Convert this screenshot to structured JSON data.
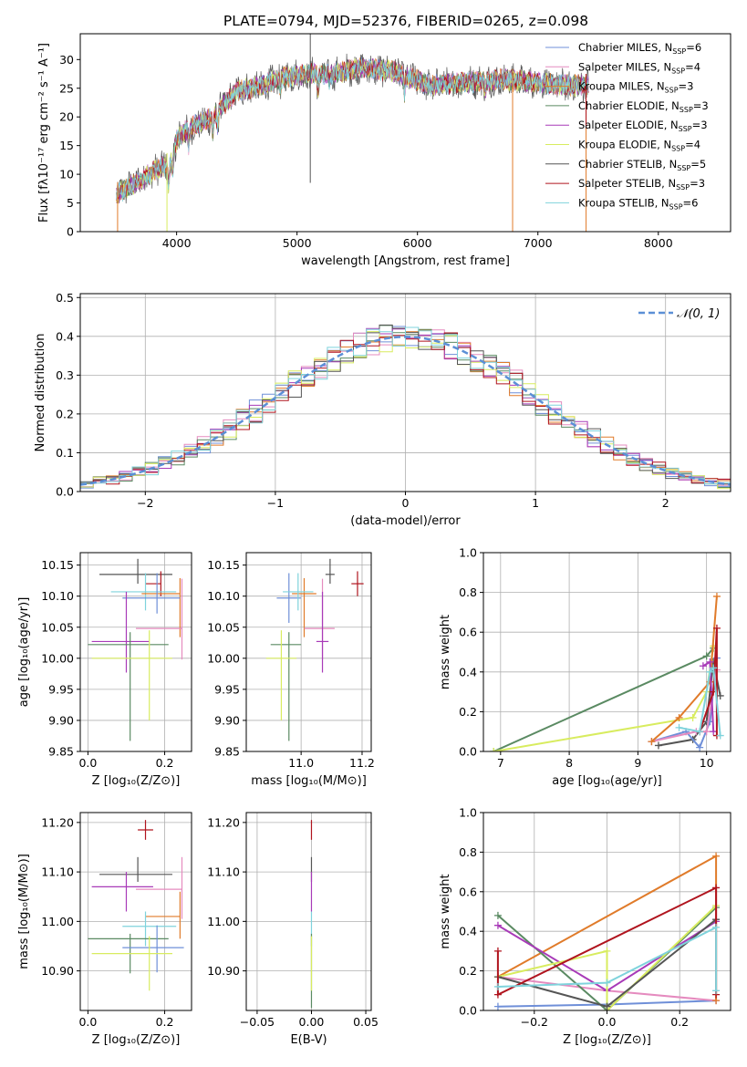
{
  "figure": {
    "title": "PLATE=0794, MJD=52376, FIBERID=0265, z=0.098"
  },
  "colors": {
    "Chabrier MILES": "#6f8fd8",
    "Salpeter MILES": "#e58bbf",
    "Kroupa MILES": "#e07b2a",
    "Chabrier ELODIE": "#5a8a62",
    "Salpeter ELODIE": "#a83ab8",
    "Kroupa ELODIE": "#d8ec5f",
    "Chabrier STELIB": "#555555",
    "Salpeter STELIB": "#b0141e",
    "Kroupa STELIB": "#7fd3dc"
  },
  "chart_data": [
    {
      "id": "spectrum",
      "type": "line",
      "xlabel": "wavelength [Angstrom, rest frame]",
      "ylabel": "Flux [fλ10⁻¹⁷ erg cm⁻² s⁻¹ A⁻¹]",
      "xlim": [
        3200,
        8600
      ],
      "ylim": [
        0,
        34.5
      ],
      "xticks": [
        4000,
        5000,
        6000,
        7000,
        8000
      ],
      "yticks": [
        0,
        5,
        10,
        15,
        20,
        25,
        30
      ],
      "grid": false,
      "legend_position": "upper right",
      "legend": [
        {
          "label": "Chabrier MILES, N",
          "sub": "SSP",
          "suffix": "=6"
        },
        {
          "label": "Salpeter MILES, N",
          "sub": "SSP",
          "suffix": "=4"
        },
        {
          "label": "Kroupa MILES, N",
          "sub": "SSP",
          "suffix": "=3"
        },
        {
          "label": "Chabrier ELODIE, N",
          "sub": "SSP",
          "suffix": "=3"
        },
        {
          "label": "Salpeter ELODIE, N",
          "sub": "SSP",
          "suffix": "=3"
        },
        {
          "label": "Kroupa ELODIE, N",
          "sub": "SSP",
          "suffix": "=4"
        },
        {
          "label": "Chabrier STELIB, N",
          "sub": "SSP",
          "suffix": "=5"
        },
        {
          "label": "Salpeter STELIB, N",
          "sub": "SSP",
          "suffix": "=3"
        },
        {
          "label": "Kroupa STELIB, N",
          "sub": "SSP",
          "suffix": "=6"
        }
      ],
      "continuum": {
        "x": [
          3500,
          3700,
          3850,
          3950,
          4000,
          4100,
          4300,
          4500,
          4700,
          4900,
          5100,
          5300,
          5500,
          5800,
          6100,
          6400,
          6700,
          7000,
          7200,
          7400
        ],
        "y": [
          6.5,
          9,
          11,
          12,
          16,
          18,
          20,
          24.5,
          25.5,
          27,
          27.5,
          27.5,
          28.5,
          28,
          25.5,
          26,
          26.5,
          26,
          25.5,
          25.5
        ]
      },
      "spikes": [
        {
          "x": 5110,
          "y0": 8.5,
          "series": "Chabrier STELIB"
        },
        {
          "x": 3510,
          "y0": 0,
          "series": "Kroupa MILES"
        },
        {
          "x": 3920,
          "y0": 0,
          "series": "Kroupa ELODIE"
        },
        {
          "x": 6790,
          "y0": 0,
          "series": "Kroupa MILES"
        },
        {
          "x": 7400,
          "y0": 0,
          "series": "Kroupa MILES"
        },
        {
          "x": 7400,
          "y0": 18,
          "series": "Salpeter STELIB"
        }
      ]
    },
    {
      "id": "residuals",
      "type": "line",
      "xlabel": "(data-model)/error",
      "ylabel": "Normed distribution",
      "xlim": [
        -2.5,
        2.5
      ],
      "ylim": [
        0,
        0.51
      ],
      "xticks": [
        -2,
        -1,
        0,
        1,
        2
      ],
      "yticks": [
        0.0,
        0.1,
        0.2,
        0.3,
        0.4,
        0.5
      ],
      "grid": true,
      "legend_position": "upper right",
      "legend": [
        {
          "label": "𝒩(0, 1)",
          "style": "dashed"
        }
      ],
      "normal_curve": {
        "mean": 0,
        "sigma": 1
      }
    },
    {
      "id": "age-vs-Z",
      "type": "scatter",
      "xlabel": "Z [log₁₀(Z/Z⊙)]",
      "ylabel": "age  [log₁₀(age/yr)]",
      "xlim": [
        -0.02,
        0.27
      ],
      "ylim": [
        9.85,
        10.17
      ],
      "xticks": [
        0.0,
        0.2
      ],
      "yticks": [
        9.85,
        9.9,
        9.95,
        10.0,
        10.05,
        10.1,
        10.15
      ],
      "grid": true,
      "points": [
        {
          "series": "Chabrier STELIB",
          "x": 0.13,
          "xerr": [
            0.1,
            0.09
          ],
          "y": 10.135,
          "yerr": [
            0.015,
            0.025
          ]
        },
        {
          "series": "Salpeter STELIB",
          "x": 0.19,
          "xerr": [
            0.04,
            0.0
          ],
          "y": 10.12,
          "yerr": [
            0.02,
            0.02
          ]
        },
        {
          "series": "Kroupa STELIB",
          "x": 0.15,
          "xerr": [
            0.09,
            0.08
          ],
          "y": 10.107,
          "yerr": [
            0.03,
            0.03
          ]
        },
        {
          "series": "Kroupa MILES",
          "x": 0.24,
          "xerr": [
            0.1,
            0.0
          ],
          "y": 10.104,
          "yerr": [
            0.07,
            0.025
          ]
        },
        {
          "series": "Chabrier MILES",
          "x": 0.18,
          "xerr": [
            0.09,
            0.06
          ],
          "y": 10.097,
          "yerr": [
            0.025,
            0.04
          ]
        },
        {
          "series": "Salpeter MILES",
          "x": 0.245,
          "xerr": [
            0.12,
            0.0
          ],
          "y": 10.048,
          "yerr": [
            0.05,
            0.08
          ]
        },
        {
          "series": "Salpeter ELODIE",
          "x": 0.1,
          "xerr": [
            0.09,
            0.06
          ],
          "y": 10.027,
          "yerr": [
            0.05,
            0.08
          ]
        },
        {
          "series": "Chabrier ELODIE",
          "x": 0.11,
          "xerr": [
            0.11,
            0.1
          ],
          "y": 10.022,
          "yerr": [
            0.155,
            0.02
          ]
        },
        {
          "series": "Kroupa ELODIE",
          "x": 0.16,
          "xerr": [
            0.15,
            0.06
          ],
          "y": 10.0,
          "yerr": [
            0.1,
            0.045
          ]
        }
      ]
    },
    {
      "id": "age-vs-mass",
      "type": "scatter",
      "xlabel": "mass [log₁₀(M/M⊙)]",
      "xlim": [
        10.82,
        11.23
      ],
      "ylim": [
        9.85,
        10.17
      ],
      "xticks": [
        11.0,
        11.2
      ],
      "yticks": [
        9.85,
        9.9,
        9.95,
        10.0,
        10.05,
        10.1,
        10.15
      ],
      "grid": true,
      "points": [
        {
          "series": "Chabrier STELIB",
          "x": 11.095,
          "xerr": [
            0.015,
            0.015
          ],
          "y": 10.135,
          "yerr": [
            0.015,
            0.025
          ]
        },
        {
          "series": "Salpeter STELIB",
          "x": 11.185,
          "xerr": [
            0.02,
            0.02
          ],
          "y": 10.12,
          "yerr": [
            0.02,
            0.02
          ]
        },
        {
          "series": "Chabrier MILES",
          "x": 10.96,
          "xerr": [
            0.04,
            0.04
          ],
          "y": 10.097,
          "yerr": [
            0.04,
            0.04
          ]
        },
        {
          "series": "Kroupa MILES",
          "x": 11.01,
          "xerr": [
            0.04,
            0.04
          ],
          "y": 10.104,
          "yerr": [
            0.07,
            0.025
          ]
        },
        {
          "series": "Kroupa STELIB",
          "x": 10.99,
          "xerr": [
            0.05,
            0.05
          ],
          "y": 10.107,
          "yerr": [
            0.03,
            0.03
          ]
        },
        {
          "series": "Salpeter MILES",
          "x": 11.07,
          "xerr": [
            0.06,
            0.04
          ],
          "y": 10.048,
          "yerr": [
            0.05,
            0.08
          ]
        },
        {
          "series": "Salpeter ELODIE",
          "x": 11.07,
          "xerr": [
            0.02,
            0.02
          ],
          "y": 10.027,
          "yerr": [
            0.05,
            0.08
          ]
        },
        {
          "series": "Chabrier ELODIE",
          "x": 10.96,
          "xerr": [
            0.06,
            0.04
          ],
          "y": 10.022,
          "yerr": [
            0.155,
            0.02
          ]
        },
        {
          "series": "Kroupa ELODIE",
          "x": 10.935,
          "xerr": [
            0.05,
            0.05
          ],
          "y": 10.0,
          "yerr": [
            0.1,
            0.045
          ]
        }
      ]
    },
    {
      "id": "weight-vs-age",
      "type": "line",
      "xlabel": "age  [log₁₀(age/yr)]",
      "ylabel": "mass weight",
      "xlim": [
        6.75,
        10.35
      ],
      "ylim": [
        0,
        1.0
      ],
      "xticks": [
        7,
        8,
        9,
        10
      ],
      "yticks": [
        0.0,
        0.2,
        0.4,
        0.6,
        0.8,
        1.0
      ],
      "grid": true,
      "series": [
        {
          "name": "Chabrier ELODIE",
          "x": [
            6.9,
            10.0,
            10.1
          ],
          "y": [
            0.0,
            0.48,
            0.52
          ]
        },
        {
          "name": "Kroupa ELODIE",
          "x": [
            6.9,
            9.8,
            10.0,
            10.1
          ],
          "y": [
            0.0,
            0.17,
            0.3,
            0.53
          ]
        },
        {
          "name": "Chabrier STELIB",
          "x": [
            9.3,
            9.8,
            10.0,
            10.1,
            10.2
          ],
          "y": [
            0.03,
            0.06,
            0.15,
            0.45,
            0.28
          ]
        },
        {
          "name": "Chabrier MILES",
          "x": [
            9.2,
            9.7,
            9.9,
            10.05,
            10.15
          ],
          "y": [
            0.05,
            0.1,
            0.02,
            0.15,
            0.47
          ]
        },
        {
          "name": "Salpeter MILES",
          "x": [
            9.2,
            9.85,
            10.0,
            10.15
          ],
          "y": [
            0.05,
            0.1,
            0.1,
            0.41
          ]
        },
        {
          "name": "Kroupa MILES",
          "x": [
            9.2,
            9.6,
            10.05,
            10.15
          ],
          "y": [
            0.05,
            0.17,
            0.35,
            0.78
          ]
        },
        {
          "name": "Salpeter ELODIE",
          "x": [
            9.95,
            10.05,
            10.1
          ],
          "y": [
            0.43,
            0.45,
            0.1
          ]
        },
        {
          "name": "Salpeter STELIB",
          "x": [
            9.9,
            10.1,
            10.15,
            10.15
          ],
          "y": [
            0.1,
            0.3,
            0.62,
            0.08
          ]
        },
        {
          "name": "Kroupa STELIB",
          "x": [
            9.6,
            9.9,
            10.05,
            10.1,
            10.2
          ],
          "y": [
            0.12,
            0.1,
            0.4,
            0.42,
            0.08
          ]
        }
      ]
    },
    {
      "id": "mass-vs-Z",
      "type": "scatter",
      "xlabel": "Z [log₁₀(Z/Z⊙)]",
      "ylabel": "mass [log₁₀(M/M⊙)]",
      "xlim": [
        -0.02,
        0.27
      ],
      "ylim": [
        10.82,
        11.22
      ],
      "xticks": [
        0.0,
        0.2
      ],
      "yticks": [
        10.9,
        11.0,
        11.1,
        11.2
      ],
      "grid": true,
      "points": [
        {
          "series": "Salpeter STELIB",
          "x": 0.15,
          "xerr": [
            0.02,
            0.02
          ],
          "y": 11.185,
          "yerr": [
            0.02,
            0.02
          ]
        },
        {
          "series": "Chabrier STELIB",
          "x": 0.13,
          "xerr": [
            0.1,
            0.09
          ],
          "y": 11.095,
          "yerr": [
            0.015,
            0.035
          ]
        },
        {
          "series": "Salpeter ELODIE",
          "x": 0.1,
          "xerr": [
            0.09,
            0.07
          ],
          "y": 11.07,
          "yerr": [
            0.05,
            0.03
          ]
        },
        {
          "series": "Salpeter MILES",
          "x": 0.245,
          "xerr": [
            0.12,
            0.0
          ],
          "y": 11.065,
          "yerr": [
            0.06,
            0.065
          ]
        },
        {
          "series": "Kroupa MILES",
          "x": 0.24,
          "xerr": [
            0.09,
            0.0
          ],
          "y": 11.01,
          "yerr": [
            0.045,
            0.05
          ]
        },
        {
          "series": "Kroupa STELIB",
          "x": 0.15,
          "xerr": [
            0.06,
            0.08
          ],
          "y": 10.99,
          "yerr": [
            0.04,
            0.03
          ]
        },
        {
          "series": "Chabrier ELODIE",
          "x": 0.11,
          "xerr": [
            0.11,
            0.1
          ],
          "y": 10.965,
          "yerr": [
            0.07,
            0.01
          ]
        },
        {
          "series": "Chabrier MILES",
          "x": 0.18,
          "xerr": [
            0.09,
            0.07
          ],
          "y": 10.947,
          "yerr": [
            0.05,
            0.045
          ]
        },
        {
          "series": "Kroupa ELODIE",
          "x": 0.16,
          "xerr": [
            0.15,
            0.06
          ],
          "y": 10.935,
          "yerr": [
            0.075,
            0.035
          ]
        }
      ]
    },
    {
      "id": "mass-vs-EBV",
      "type": "scatter",
      "xlabel": "E(B-V)",
      "xlim": [
        -0.06,
        0.055
      ],
      "ylim": [
        10.82,
        11.22
      ],
      "xticks": [
        -0.05,
        0.0,
        0.05
      ],
      "yticks": [
        10.9,
        11.0,
        11.1,
        11.2
      ],
      "grid": true,
      "points": [
        {
          "series": "Salpeter STELIB",
          "x": 0.0,
          "y": 11.185,
          "yerr": [
            0.02,
            0.02
          ]
        },
        {
          "series": "Chabrier STELIB",
          "x": 0.0,
          "y": 11.095,
          "yerr": [
            0.015,
            0.035
          ]
        },
        {
          "series": "Salpeter ELODIE",
          "x": 0.0,
          "y": 11.07,
          "yerr": [
            0.05,
            0.03
          ]
        },
        {
          "series": "Kroupa STELIB",
          "x": 0.0,
          "y": 10.99,
          "yerr": [
            0.04,
            0.03
          ]
        },
        {
          "series": "Chabrier ELODIE",
          "x": 0.0,
          "y": 10.965,
          "yerr": [
            0.14,
            0.01
          ]
        },
        {
          "series": "Kroupa ELODIE",
          "x": 0.0,
          "y": 10.935,
          "yerr": [
            0.075,
            0.035
          ]
        }
      ]
    },
    {
      "id": "weight-vs-Z",
      "type": "line",
      "xlabel": "Z [log₁₀(Z/Z⊙)]",
      "ylabel": "mass weight",
      "xlim": [
        -0.34,
        0.34
      ],
      "ylim": [
        0,
        1.0
      ],
      "xticks": [
        -0.2,
        0.0,
        0.2
      ],
      "yticks": [
        0.0,
        0.2,
        0.4,
        0.6,
        0.8,
        1.0
      ],
      "grid": true,
      "series": [
        {
          "name": "Chabrier MILES",
          "x": [
            -0.3,
            0.0,
            0.3
          ],
          "y": [
            0.02,
            0.03,
            0.05
          ]
        },
        {
          "name": "Salpeter MILES",
          "x": [
            -0.3,
            0.0,
            0.3
          ],
          "y": [
            0.17,
            0.1,
            0.05
          ]
        },
        {
          "name": "Kroupa MILES",
          "x": [
            -0.3,
            0.3,
            0.3
          ],
          "y": [
            0.17,
            0.78,
            0.05
          ]
        },
        {
          "name": "Chabrier ELODIE",
          "x": [
            -0.3,
            0.0,
            0.3
          ],
          "y": [
            0.48,
            0.0,
            0.52
          ]
        },
        {
          "name": "Salpeter ELODIE",
          "x": [
            -0.3,
            0.0,
            0.3
          ],
          "y": [
            0.43,
            0.1,
            0.45
          ]
        },
        {
          "name": "Kroupa ELODIE",
          "x": [
            -0.3,
            0.0,
            0.0,
            0.3
          ],
          "y": [
            0.17,
            0.3,
            0.0,
            0.53
          ]
        },
        {
          "name": "Chabrier STELIB",
          "x": [
            -0.3,
            0.0,
            0.3
          ],
          "y": [
            0.17,
            0.02,
            0.46
          ]
        },
        {
          "name": "Salpeter STELIB",
          "x": [
            -0.3,
            -0.3,
            0.3,
            0.3
          ],
          "y": [
            0.3,
            0.08,
            0.62,
            0.08
          ]
        },
        {
          "name": "Kroupa STELIB",
          "x": [
            -0.3,
            0.0,
            0.3,
            0.3
          ],
          "y": [
            0.12,
            0.14,
            0.42,
            0.1
          ]
        }
      ]
    }
  ]
}
